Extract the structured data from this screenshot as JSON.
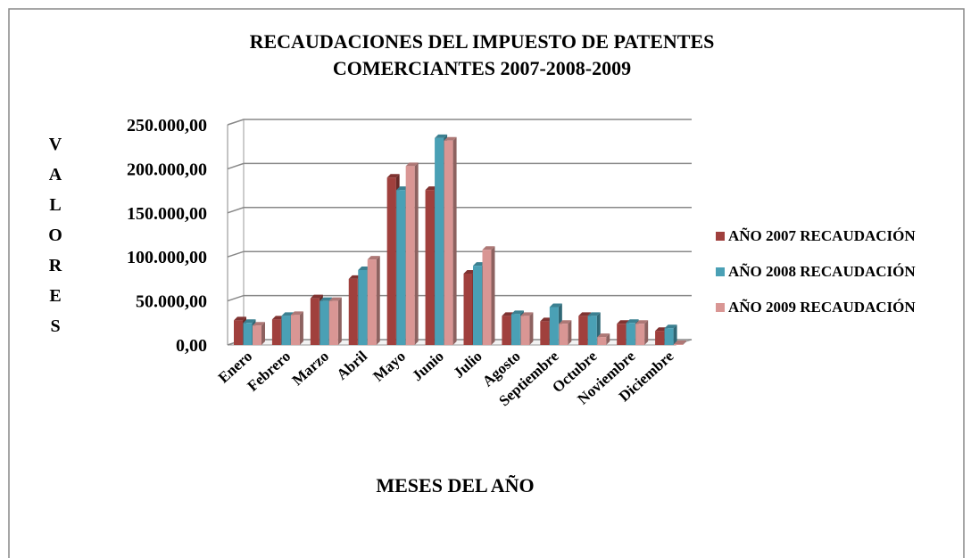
{
  "chart_data": {
    "type": "bar",
    "title": [
      "RECAUDACIONES DEL IMPUESTO DE PATENTES",
      "COMERCIANTES 2007-2008-2009"
    ],
    "x_label": "MESES DEL AÑO",
    "y_label": "VALORES",
    "categories": [
      "Enero",
      "Febrero",
      "Marzo",
      "Abril",
      "Mayo",
      "Junio",
      "Julio",
      "Agosto",
      "Septiembre",
      "Octubre",
      "Noviembre",
      "Diciembre"
    ],
    "series": [
      {
        "name": "AÑO 2007 RECAUDACIÓN",
        "color": "#a0403d",
        "values": [
          28000,
          29000,
          53000,
          75000,
          190000,
          176000,
          81000,
          33000,
          27000,
          33000,
          24000,
          16000
        ]
      },
      {
        "name": "AÑO 2008 RECAUDACIÓN",
        "color": "#4aa0b5",
        "values": [
          25000,
          33000,
          50000,
          85000,
          176000,
          235000,
          90000,
          35000,
          43000,
          33000,
          25000,
          19000
        ]
      },
      {
        "name": "AÑO 2009 RECAUDACIÓN",
        "color": "#d99694",
        "values": [
          22000,
          34000,
          50000,
          97000,
          203000,
          232000,
          108000,
          33000,
          24000,
          9000,
          24000,
          1000
        ]
      }
    ],
    "ylim": [
      0,
      250000
    ],
    "yticks": [
      {
        "value": 0,
        "label": "0,00"
      },
      {
        "value": 50000,
        "label": "50.000,00"
      },
      {
        "value": 100000,
        "label": "100.000,00"
      },
      {
        "value": 150000,
        "label": "150.000,00"
      },
      {
        "value": 200000,
        "label": "200.000,00"
      },
      {
        "value": 250000,
        "label": "250.000,00"
      }
    ],
    "grid": true,
    "legend": "right"
  }
}
